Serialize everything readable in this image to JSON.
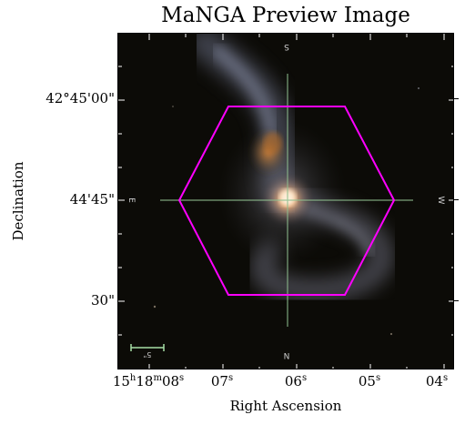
{
  "title": "MaNGA Preview Image",
  "xlabel": "Right Ascension",
  "ylabel": "Declination",
  "y_ticks": [
    {
      "text": "42°45'00\""
    },
    {
      "text": "44'45\""
    },
    {
      "text": "30\""
    }
  ],
  "x_ticks": [
    {
      "h": "15",
      "m": "18",
      "s": "08",
      "text": ""
    },
    {
      "text": "07",
      "sup": "s"
    },
    {
      "text": "06",
      "sup": "s"
    },
    {
      "text": "05",
      "sup": "s"
    },
    {
      "text": "04",
      "sup": "s"
    }
  ],
  "compass": {
    "north": "N",
    "south": "S",
    "east": "E",
    "west": "W"
  },
  "scale_label": "5\"",
  "colors": {
    "hexagon": "#ff00ff",
    "crosshair": "#8fbf8f",
    "scalebar": "#a6e0a6",
    "sky": "#0c0b07"
  },
  "icons": [
    "ifu-hexagon-icon",
    "crosshair-icon",
    "scale-bar-icon"
  ]
}
